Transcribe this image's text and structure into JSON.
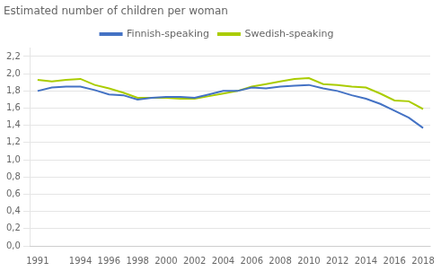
{
  "chart_data": {
    "type": "line",
    "title": "Estimated number of children per woman",
    "x": [
      1991,
      1992,
      1993,
      1994,
      1995,
      1996,
      1997,
      1998,
      1999,
      2000,
      2001,
      2002,
      2003,
      2004,
      2005,
      2006,
      2007,
      2008,
      2009,
      2010,
      2011,
      2012,
      2013,
      2014,
      2015,
      2016,
      2017,
      2018
    ],
    "series": [
      {
        "name": "Finnish-speaking",
        "color": "#4472C4",
        "values": [
          1.8,
          1.84,
          1.85,
          1.85,
          1.81,
          1.76,
          1.75,
          1.7,
          1.72,
          1.73,
          1.73,
          1.72,
          1.76,
          1.8,
          1.8,
          1.84,
          1.83,
          1.85,
          1.86,
          1.87,
          1.83,
          1.8,
          1.75,
          1.71,
          1.65,
          1.57,
          1.49,
          1.37
        ]
      },
      {
        "name": "Swedish-speaking",
        "color": "#AACC00",
        "values": [
          1.93,
          1.91,
          1.93,
          1.94,
          1.87,
          1.83,
          1.78,
          1.72,
          1.72,
          1.72,
          1.71,
          1.71,
          1.74,
          1.77,
          1.8,
          1.85,
          1.88,
          1.91,
          1.94,
          1.95,
          1.88,
          1.87,
          1.85,
          1.84,
          1.77,
          1.69,
          1.68,
          1.59
        ]
      }
    ],
    "xlim": [
      1990.5,
      2018.5
    ],
    "xticks": [
      1991,
      1994,
      1996,
      1998,
      2000,
      2002,
      2004,
      2006,
      2008,
      2010,
      2012,
      2014,
      2016,
      2018
    ],
    "ylim": [
      0.0,
      2.3
    ],
    "yticks": [
      {
        "value": 0.0,
        "label": "0,0"
      },
      {
        "value": 0.2,
        "label": "0,2"
      },
      {
        "value": 0.4,
        "label": "0,4"
      },
      {
        "value": 0.6,
        "label": "0,6"
      },
      {
        "value": 0.8,
        "label": "0,8"
      },
      {
        "value": 1.0,
        "label": "1,0"
      },
      {
        "value": 1.2,
        "label": "1,2"
      },
      {
        "value": 1.4,
        "label": "1,4"
      },
      {
        "value": 1.6,
        "label": "1,6"
      },
      {
        "value": 1.8,
        "label": "1,8"
      },
      {
        "value": 2.0,
        "label": "2,0"
      },
      {
        "value": 2.2,
        "label": "2,2"
      }
    ],
    "grid": "y",
    "legend": "top",
    "marker": "none"
  }
}
